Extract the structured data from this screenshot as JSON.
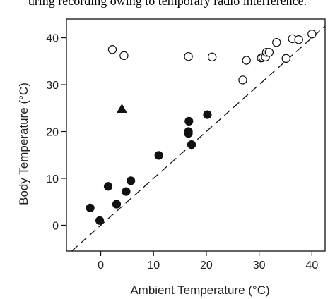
{
  "caption": "uring recording owing to temporary radio interference.",
  "chart_data": {
    "type": "scatter",
    "title": "",
    "xlabel": "Ambient Temperature (°C)",
    "ylabel": "Body Temperature (°C)",
    "xlim": [
      -6.5,
      42.5
    ],
    "ylim": [
      -5.5,
      44
    ],
    "xticks": [
      0,
      10,
      20,
      30,
      40
    ],
    "yticks": [
      0,
      10,
      20,
      30,
      40
    ],
    "grid": false,
    "legend": "none",
    "reference_line": {
      "style": "dashed",
      "description": "y = x",
      "from": [
        -6.5,
        -6.5
      ],
      "to": [
        42.5,
        42.5
      ]
    },
    "series": [
      {
        "marker": "open-circle",
        "points": [
          [
            2.2,
            37.5
          ],
          [
            4.4,
            36.2
          ],
          [
            16.6,
            36.0
          ],
          [
            21.1,
            35.9
          ],
          [
            26.9,
            31.0
          ],
          [
            27.6,
            35.2
          ],
          [
            30.4,
            35.7
          ],
          [
            30.7,
            35.8
          ],
          [
            31.2,
            35.9
          ],
          [
            31.4,
            36.9
          ],
          [
            31.9,
            36.9
          ],
          [
            33.3,
            39.0
          ],
          [
            35.1,
            35.6
          ],
          [
            36.3,
            39.8
          ],
          [
            37.5,
            39.6
          ],
          [
            40.0,
            40.8
          ]
        ]
      },
      {
        "marker": "filled-circle",
        "points": [
          [
            -2.0,
            3.7
          ],
          [
            -0.2,
            1.0
          ],
          [
            1.4,
            8.3
          ],
          [
            3.0,
            4.5
          ],
          [
            4.8,
            7.2
          ],
          [
            5.7,
            9.5
          ],
          [
            11.0,
            14.9
          ],
          [
            16.6,
            19.6
          ],
          [
            16.6,
            20.0
          ],
          [
            16.7,
            22.2
          ],
          [
            17.2,
            17.2
          ],
          [
            20.2,
            23.6
          ]
        ]
      },
      {
        "marker": "filled-triangle",
        "points": [
          [
            4.0,
            24.8
          ]
        ]
      }
    ]
  },
  "colors": {
    "marker_fill": "#111111",
    "marker_stroke": "#111111",
    "axis": "#111111",
    "dashed_line": "#111111"
  }
}
